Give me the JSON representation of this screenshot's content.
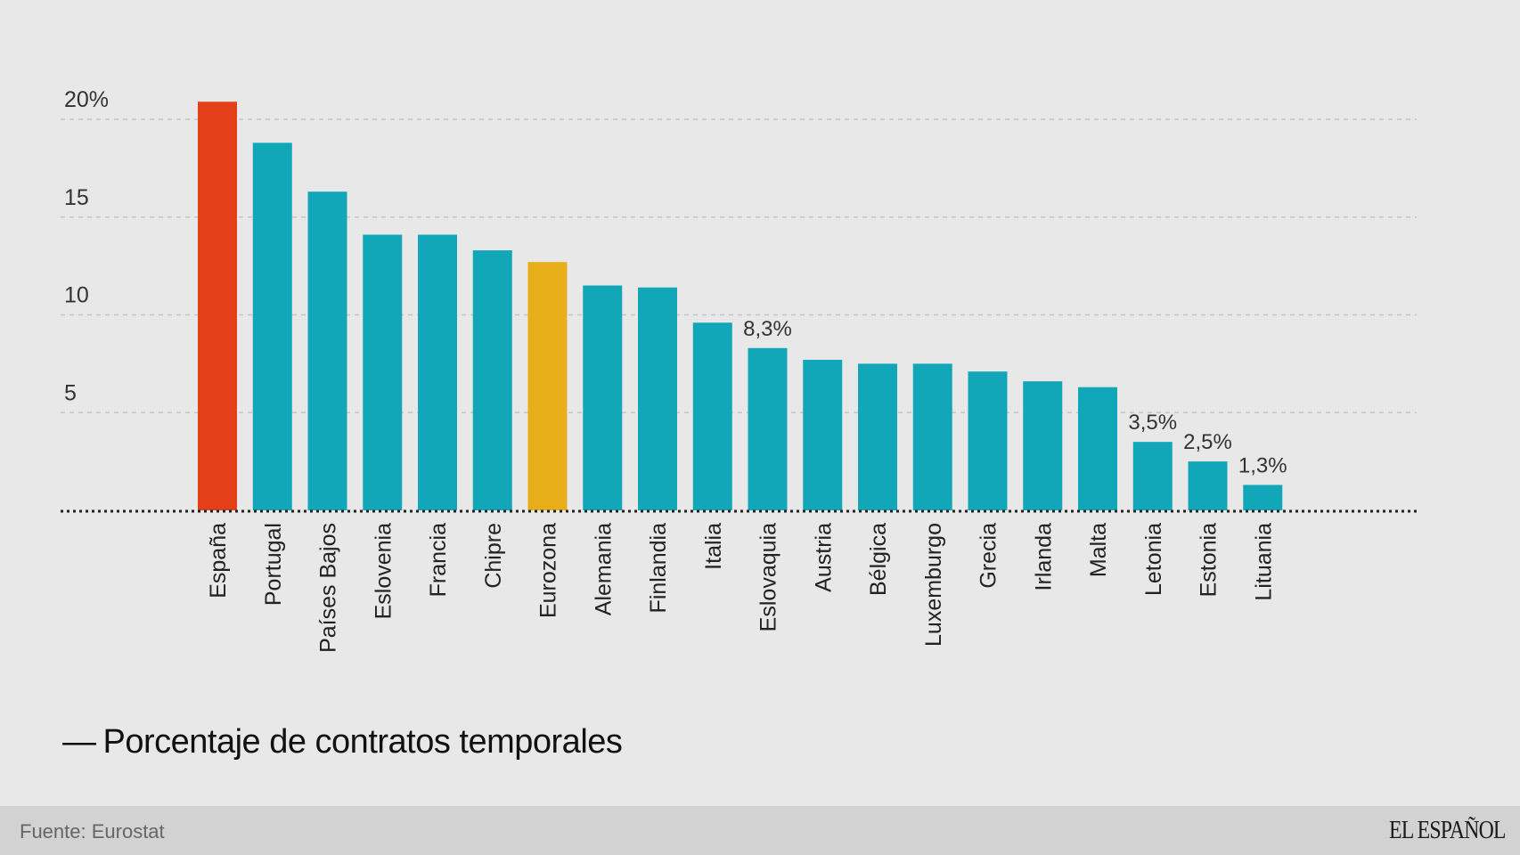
{
  "chart_data": {
    "type": "bar",
    "title": "",
    "xlabel": "",
    "ylabel": "",
    "ylim": [
      0,
      20
    ],
    "yticks": [
      {
        "value": 5,
        "label": "5"
      },
      {
        "value": 10,
        "label": "10"
      },
      {
        "value": 15,
        "label": "15"
      },
      {
        "value": 20,
        "label": "20%"
      }
    ],
    "grid": true,
    "categories": [
      "España",
      "Portugal",
      "Países Bajos",
      "Eslovenia",
      "Francia",
      "Chipre",
      "Eurozona",
      "Alemania",
      "Finlandia",
      "Italia",
      "Eslovaquia",
      "Austria",
      "Bélgica",
      "Luxemburgo",
      "Grecia",
      "Irlanda",
      "Malta",
      "Letonia",
      "Estonia",
      "Lituania"
    ],
    "series": [
      {
        "name": "Porcentaje de contratos temporales",
        "values": [
          20.9,
          18.8,
          16.3,
          14.1,
          14.1,
          13.3,
          12.7,
          11.5,
          11.4,
          9.6,
          8.3,
          7.7,
          7.5,
          7.5,
          7.1,
          6.6,
          6.3,
          3.5,
          2.5,
          1.3
        ]
      }
    ],
    "data_labels": [
      {
        "category": "Eslovaquia",
        "label": "8,3%"
      },
      {
        "category": "Letonia",
        "label": "3,5%"
      },
      {
        "category": "Estonia",
        "label": "2,5%"
      },
      {
        "category": "Lituania",
        "label": "1,3%"
      }
    ],
    "highlights": {
      "España": "#e3401a",
      "Eurozona": "#e8ae1a"
    },
    "default_color": "#11a7b8",
    "legend": {
      "placement": "bottom-left",
      "label": "Porcentaje de contratos temporales",
      "marker": "—"
    }
  },
  "legend": {
    "dash": "—",
    "label": "Porcentaje de contratos temporales"
  },
  "footer": {
    "source": "Fuente: Eurostat",
    "brand": "EL ESPAÑOL"
  },
  "colors": {
    "background": "#e8e8e8",
    "footer_background": "#d2d2d2",
    "highlight_spain": "#e3401a",
    "highlight_eurozone": "#e8ae1a",
    "bar_default": "#11a7b8"
  }
}
